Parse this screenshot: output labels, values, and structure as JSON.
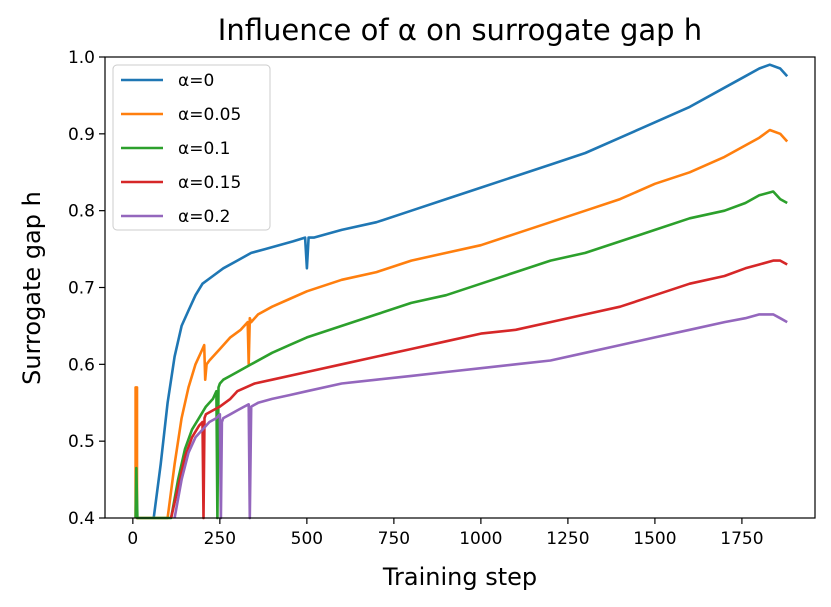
{
  "chart_data": {
    "type": "line",
    "title": "Influence of α on surrogate gap h",
    "xlabel": "Training step",
    "ylabel": "Surrogate gap h",
    "xlim": [
      -80,
      1960
    ],
    "ylim": [
      0.4,
      1.0
    ],
    "xticks": [
      "0",
      "250",
      "500",
      "750",
      "1000",
      "1250",
      "1500",
      "1750"
    ],
    "xtick_values": [
      0,
      250,
      500,
      750,
      1000,
      1250,
      1500,
      1750
    ],
    "yticks": [
      "0.4",
      "0.5",
      "0.6",
      "0.7",
      "0.8",
      "0.9",
      "1.0"
    ],
    "ytick_values": [
      0.4,
      0.5,
      0.6,
      0.7,
      0.8,
      0.9,
      1.0
    ],
    "grid": false,
    "legend_position": "top-left",
    "series": [
      {
        "name": "α=0",
        "color": "#1f77b4",
        "x": [
          60,
          80,
          100,
          120,
          140,
          160,
          180,
          200,
          230,
          260,
          300,
          340,
          380,
          420,
          460,
          495,
          500,
          505,
          520,
          560,
          600,
          700,
          800,
          900,
          1000,
          1100,
          1200,
          1300,
          1400,
          1500,
          1600,
          1700,
          1760,
          1800,
          1830,
          1860,
          1880
        ],
        "y": [
          0.4,
          0.47,
          0.55,
          0.61,
          0.65,
          0.67,
          0.69,
          0.705,
          0.715,
          0.725,
          0.735,
          0.745,
          0.75,
          0.755,
          0.76,
          0.765,
          0.725,
          0.765,
          0.765,
          0.77,
          0.775,
          0.785,
          0.8,
          0.815,
          0.83,
          0.845,
          0.86,
          0.875,
          0.895,
          0.915,
          0.935,
          0.96,
          0.975,
          0.985,
          0.99,
          0.985,
          0.975
        ]
      },
      {
        "name": "α=0.05",
        "color": "#ff7f0e",
        "x": [
          8,
          8,
          12,
          12,
          100,
          120,
          140,
          160,
          180,
          200,
          205,
          208,
          212,
          220,
          250,
          280,
          310,
          330,
          333,
          336,
          340,
          360,
          400,
          450,
          500,
          600,
          700,
          800,
          900,
          1000,
          1100,
          1200,
          1300,
          1400,
          1500,
          1600,
          1700,
          1760,
          1800,
          1830,
          1860,
          1880
        ],
        "y": [
          0.4,
          0.57,
          0.57,
          0.4,
          0.4,
          0.47,
          0.53,
          0.57,
          0.6,
          0.62,
          0.625,
          0.58,
          0.6,
          0.605,
          0.62,
          0.635,
          0.645,
          0.655,
          0.6,
          0.66,
          0.655,
          0.665,
          0.675,
          0.685,
          0.695,
          0.71,
          0.72,
          0.735,
          0.745,
          0.755,
          0.77,
          0.785,
          0.8,
          0.815,
          0.835,
          0.85,
          0.87,
          0.885,
          0.895,
          0.905,
          0.9,
          0.89
        ]
      },
      {
        "name": "α=0.1",
        "color": "#2ca02c",
        "x": [
          8,
          10,
          13,
          110,
          130,
          150,
          170,
          190,
          210,
          230,
          240,
          243,
          246,
          250,
          260,
          280,
          300,
          340,
          400,
          450,
          500,
          600,
          700,
          800,
          900,
          1000,
          1100,
          1200,
          1300,
          1400,
          1500,
          1600,
          1700,
          1760,
          1800,
          1840,
          1860,
          1880
        ],
        "y": [
          0.4,
          0.465,
          0.4,
          0.4,
          0.45,
          0.49,
          0.515,
          0.53,
          0.545,
          0.555,
          0.565,
          0.4,
          0.57,
          0.575,
          0.58,
          0.585,
          0.59,
          0.6,
          0.615,
          0.625,
          0.635,
          0.65,
          0.665,
          0.68,
          0.69,
          0.705,
          0.72,
          0.735,
          0.745,
          0.76,
          0.775,
          0.79,
          0.8,
          0.81,
          0.82,
          0.825,
          0.815,
          0.81
        ]
      },
      {
        "name": "α=0.15",
        "color": "#d62728",
        "x": [
          110,
          130,
          150,
          170,
          190,
          200,
          203,
          206,
          210,
          230,
          250,
          280,
          300,
          350,
          400,
          500,
          600,
          700,
          800,
          900,
          1000,
          1100,
          1200,
          1300,
          1400,
          1500,
          1600,
          1700,
          1760,
          1800,
          1840,
          1860,
          1880
        ],
        "y": [
          0.4,
          0.44,
          0.48,
          0.505,
          0.52,
          0.525,
          0.4,
          0.53,
          0.535,
          0.54,
          0.545,
          0.555,
          0.565,
          0.575,
          0.58,
          0.59,
          0.6,
          0.61,
          0.62,
          0.63,
          0.64,
          0.645,
          0.655,
          0.665,
          0.675,
          0.69,
          0.705,
          0.715,
          0.725,
          0.73,
          0.735,
          0.735,
          0.73
        ]
      },
      {
        "name": "α=0.2",
        "color": "#9467bd",
        "x": [
          120,
          140,
          160,
          180,
          200,
          220,
          240,
          250,
          253,
          256,
          260,
          280,
          300,
          320,
          333,
          336,
          340,
          360,
          400,
          450,
          500,
          600,
          700,
          800,
          900,
          1000,
          1100,
          1200,
          1300,
          1400,
          1500,
          1600,
          1700,
          1760,
          1800,
          1840,
          1860,
          1880
        ],
        "y": [
          0.4,
          0.45,
          0.485,
          0.505,
          0.515,
          0.525,
          0.53,
          0.535,
          0.4,
          0.525,
          0.53,
          0.535,
          0.54,
          0.545,
          0.548,
          0.4,
          0.545,
          0.55,
          0.555,
          0.56,
          0.565,
          0.575,
          0.58,
          0.585,
          0.59,
          0.595,
          0.6,
          0.605,
          0.615,
          0.625,
          0.635,
          0.645,
          0.655,
          0.66,
          0.665,
          0.665,
          0.66,
          0.655
        ]
      }
    ]
  }
}
